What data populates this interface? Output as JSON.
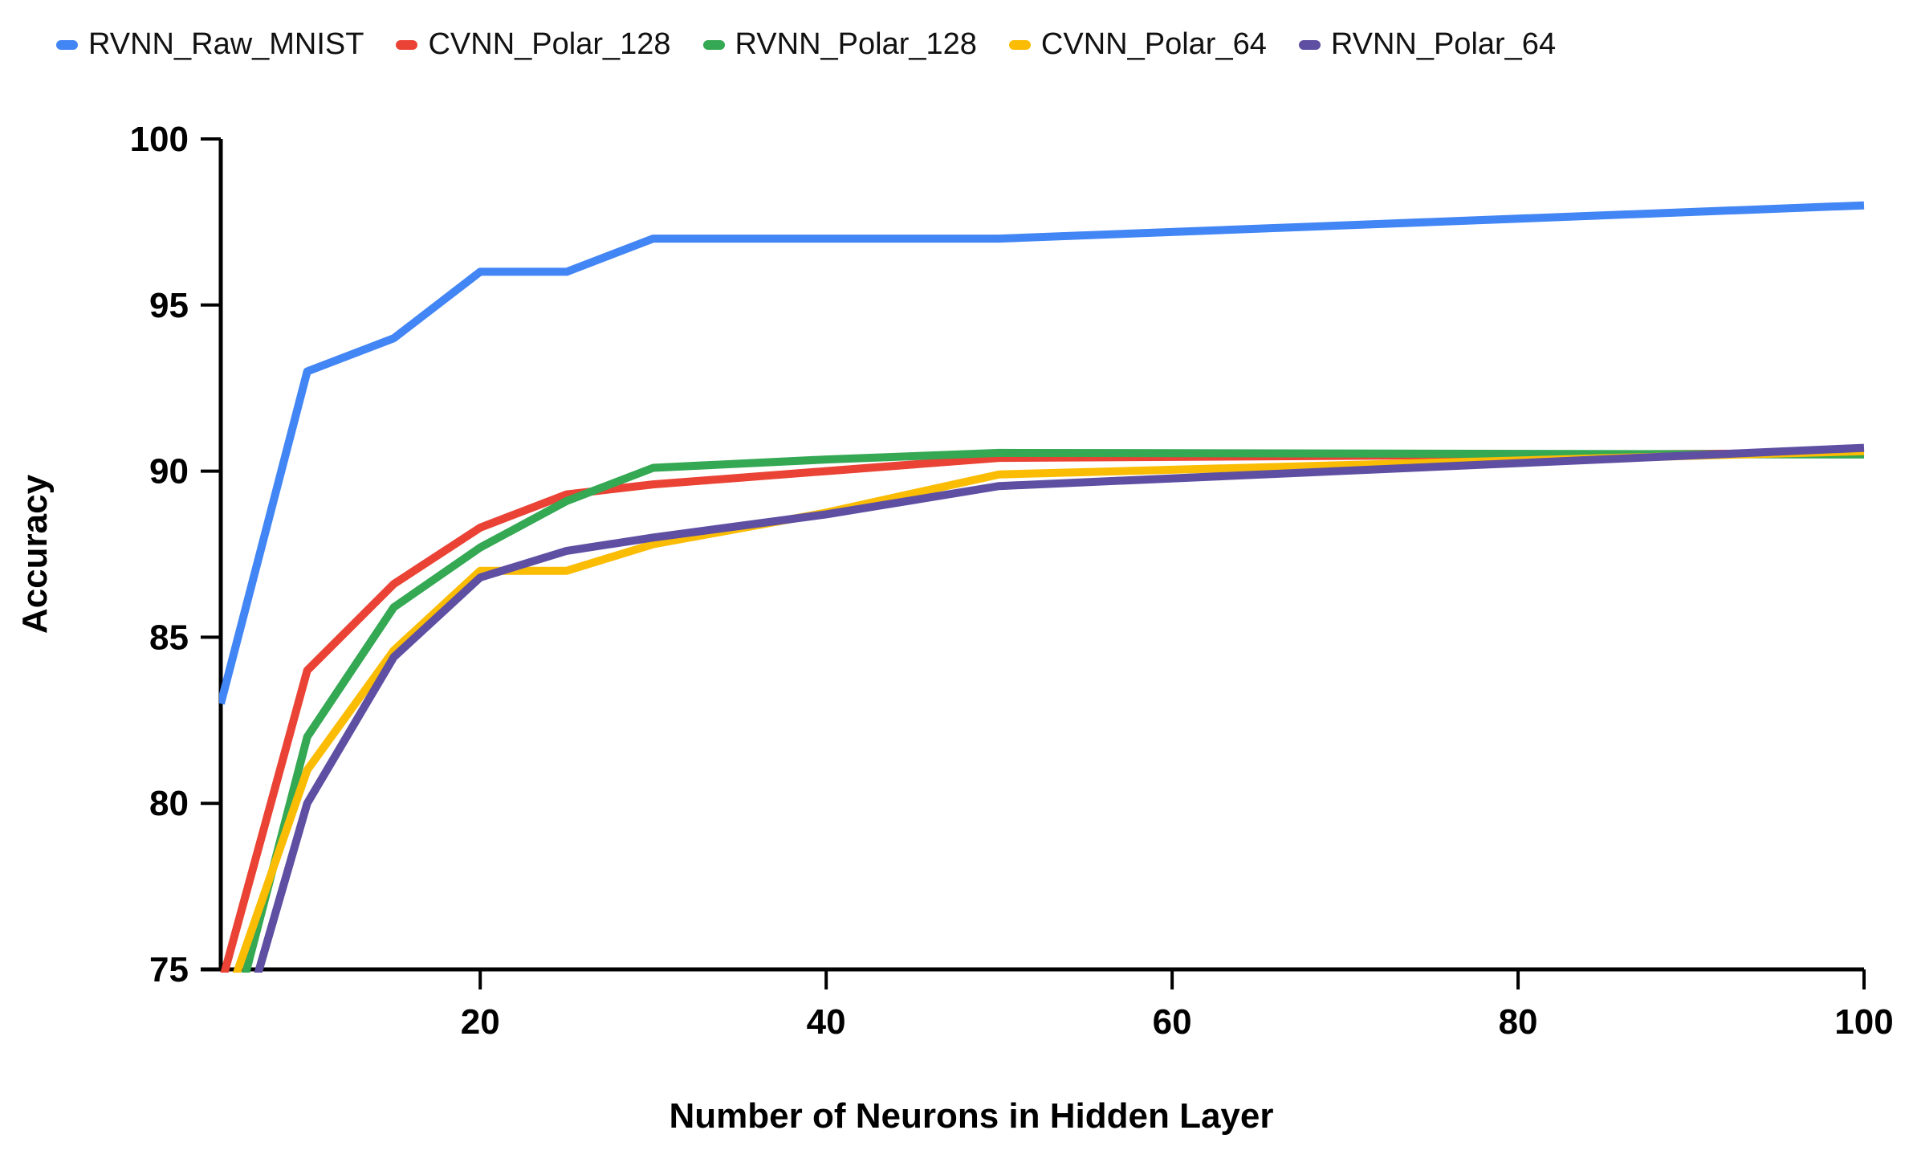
{
  "legend": {
    "items": [
      {
        "label": "RVNN_Raw_MNIST",
        "color": "#4285F4"
      },
      {
        "label": "CVNN_Polar_128",
        "color": "#EA4335"
      },
      {
        "label": "RVNN_Polar_128",
        "color": "#34A853"
      },
      {
        "label": "CVNN_Polar_64",
        "color": "#FBBC04"
      },
      {
        "label": "RVNN_Polar_64",
        "color": "#5E4FA2"
      }
    ]
  },
  "chart_data": {
    "type": "line",
    "title": "",
    "xlabel": "Number of Neurons in Hidden Layer",
    "ylabel": "Accuracy",
    "x": [
      5,
      10,
      15,
      20,
      25,
      30,
      40,
      50,
      100
    ],
    "series": [
      {
        "name": "RVNN_Raw_MNIST",
        "color": "#4285F4",
        "values": [
          83,
          93,
          94,
          96,
          96,
          97,
          97,
          97,
          98
        ]
      },
      {
        "name": "CVNN_Polar_128",
        "color": "#EA4335",
        "values": [
          74.5,
          84,
          86.6,
          88.3,
          89.3,
          89.6,
          90.0,
          90.4,
          90.55
        ]
      },
      {
        "name": "RVNN_Polar_128",
        "color": "#34A853",
        "values": [
          72,
          82,
          85.9,
          87.7,
          89.1,
          90.1,
          90.35,
          90.55,
          90.5
        ]
      },
      {
        "name": "CVNN_Polar_64",
        "color": "#FBBC04",
        "values": [
          73.5,
          81,
          84.6,
          87,
          87,
          87.8,
          88.75,
          89.9,
          90.6
        ]
      },
      {
        "name": "RVNN_Polar_64",
        "color": "#5E4FA2",
        "values": [
          71,
          80,
          84.4,
          86.8,
          87.6,
          88.0,
          88.7,
          89.55,
          90.7
        ]
      }
    ],
    "xlim": [
      5,
      100
    ],
    "ylim": [
      75,
      100
    ],
    "x_ticks": [
      20,
      40,
      60,
      80,
      100
    ],
    "y_ticks": [
      75,
      80,
      85,
      90,
      95,
      100
    ],
    "grid": false,
    "legend_position": "top-left",
    "axis_color": "#000000",
    "line_width": 10
  }
}
